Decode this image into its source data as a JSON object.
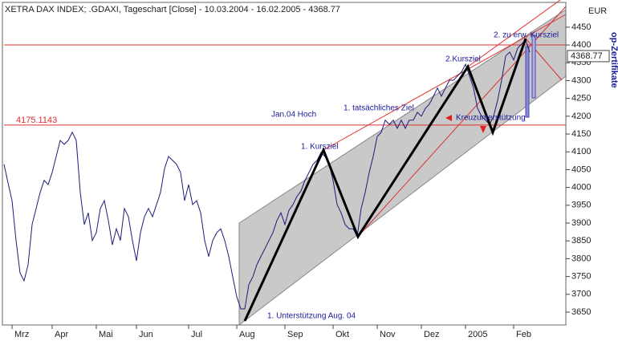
{
  "chart_data": {
    "type": "line",
    "title": "XETRA DAX INDEX; .GDAXI, Tageschart [Close] - 10.03.2004 - 16.02.2005 - 4368.77",
    "currency": "EUR",
    "side_label": "op-Zertifikate",
    "color": "#1c1c7a",
    "values": [
      4065,
      4013,
      3963,
      3851,
      3760,
      3738,
      3783,
      3896,
      3941,
      3986,
      4020,
      4008,
      4042,
      4087,
      4132,
      4121,
      4132,
      4155,
      4132,
      3986,
      3896,
      3929,
      3851,
      3873,
      3941,
      3963,
      3907,
      3839,
      3884,
      3851,
      3941,
      3918,
      3851,
      3794,
      3873,
      3918,
      3941,
      3918,
      3952,
      3986,
      4053,
      4087,
      4076,
      4065,
      4042,
      3963,
      4008,
      3952,
      3963,
      3929,
      3851,
      3806,
      3851,
      3873,
      3884,
      3851,
      3806,
      3749,
      3693,
      3659,
      3659,
      3727,
      3749,
      3783,
      3806,
      3828,
      3851,
      3873,
      3907,
      3929,
      3896,
      3936,
      3952,
      3975,
      3990,
      4020,
      4042,
      4065,
      4076,
      4098,
      4087,
      4065,
      4020,
      3952,
      3929,
      3896,
      3884,
      3884,
      3862,
      3941,
      3986,
      4042,
      4087,
      4143,
      4155,
      4189,
      4177,
      4189,
      4166,
      4189,
      4166,
      4189,
      4189,
      4211,
      4200,
      4222,
      4234,
      4256,
      4279,
      4256,
      4279,
      4301,
      4301,
      4313,
      4324,
      4346,
      4313,
      4279,
      4222,
      4200,
      4189,
      4177,
      4200,
      4245,
      4301,
      4369,
      4380,
      4358,
      4391,
      4403,
      4414,
      4380
    ],
    "xlim": [
      0,
      140
    ],
    "xticks": [
      {
        "value": 2,
        "label": "Mrz"
      },
      {
        "value": 12,
        "label": "Apr"
      },
      {
        "value": 23,
        "label": "Mai"
      },
      {
        "value": 33,
        "label": "Jun"
      },
      {
        "value": 46,
        "label": "Jul"
      },
      {
        "value": 58,
        "label": "Aug"
      },
      {
        "value": 70,
        "label": "Sep"
      },
      {
        "value": 82,
        "label": "Okt"
      },
      {
        "value": 93,
        "label": "Nov"
      },
      {
        "value": 104,
        "label": "Dez"
      },
      {
        "value": 115,
        "label": "2005"
      },
      {
        "value": 127,
        "label": "Feb"
      }
    ],
    "ylim": [
      3614,
      4515
    ],
    "yticks": [
      3650,
      3700,
      3750,
      3800,
      3850,
      3900,
      3950,
      4000,
      4050,
      4100,
      4150,
      4200,
      4250,
      4300,
      4350,
      4400,
      4450
    ],
    "reference_line": 4175.1143,
    "last_price": 4368.77,
    "annotations": [
      "1. Kursziel",
      "2.Kursziel",
      "2. zu erw. Kursziel",
      "1. tatsächliches Ziel",
      "Jan.04 Hoch",
      "Kreuzunterstützung",
      "1. Unterstützung Aug. 04"
    ]
  }
}
